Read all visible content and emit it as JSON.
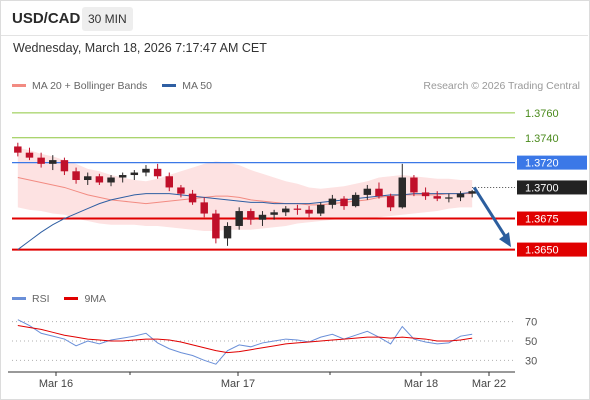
{
  "header": {
    "symbol": "USD/CAD",
    "timeframe": "30 MIN"
  },
  "timestamp": "Wednesday, March 18, 2026 7:17:47 AM CET",
  "legend": {
    "ma20_label": "MA 20 + Bollinger Bands",
    "ma50_label": "MA 50",
    "ma20_color": "#f28b82",
    "ma50_color": "#2f5fa3"
  },
  "credit": "Research © 2026 Trading Central",
  "rsi_legend": {
    "rsi_label": "RSI",
    "ma9_label": "9MA",
    "rsi_color": "#6a8fd8",
    "ma9_color": "#e00000"
  },
  "colors": {
    "up_candle": "#2a2a2a",
    "down_candle": "#c0102a",
    "resistance": "#8dc63f",
    "support": "#e00000",
    "pivot": "#3b78e7",
    "current": "#222222",
    "band_fill": "#fde2e2",
    "forecast_arrow": "#2c5e9e"
  },
  "chart_data": [
    {
      "type": "candlestick",
      "title": "USD/CAD 30 MIN",
      "ylim": [
        1.364,
        1.3772
      ],
      "x_ticks": [
        "Mar 16",
        "Mar 17",
        "Mar 18",
        "Mar 22"
      ],
      "series": [
        {
          "name": "MA 20 + Bollinger Bands",
          "values": [
            1.3708,
            1.3706,
            1.3704,
            1.3702,
            1.37,
            1.3697,
            1.3694,
            1.3692,
            1.369,
            1.3689,
            1.3688,
            1.3687,
            1.3688,
            1.3689,
            1.369,
            1.3691,
            1.3692,
            1.3693,
            1.3693,
            1.3692,
            1.369,
            1.3689,
            1.3688,
            1.3687,
            1.3687,
            1.3686,
            1.3686,
            1.3687,
            1.3688,
            1.3689,
            1.369,
            1.3692,
            1.3693,
            1.3694,
            1.3694,
            1.3694,
            1.3694,
            1.3695,
            1.3695,
            1.3695
          ]
        },
        {
          "name": "MA 50",
          "values": [
            1.365,
            1.3657,
            1.3664,
            1.367,
            1.3675,
            1.3679,
            1.3683,
            1.3687,
            1.369,
            1.3692,
            1.3694,
            1.3695,
            1.3695,
            1.3695,
            1.3694,
            1.3693,
            1.3692,
            1.3691,
            1.369,
            1.3689,
            1.3688,
            1.3688,
            1.3687,
            1.3687,
            1.3687,
            1.3687,
            1.3688,
            1.3689,
            1.369,
            1.3691,
            1.3692,
            1.3693,
            1.3694,
            1.3694,
            1.3695,
            1.3695,
            1.3695,
            1.3695,
            1.3695,
            1.3696
          ]
        }
      ],
      "candles": [
        [
          1.3733,
          1.3736,
          1.3725,
          1.3728
        ],
        [
          1.3728,
          1.3732,
          1.3722,
          1.3724
        ],
        [
          1.3724,
          1.3728,
          1.3716,
          1.3719
        ],
        [
          1.3719,
          1.3726,
          1.3714,
          1.3722
        ],
        [
          1.3722,
          1.3724,
          1.371,
          1.3713
        ],
        [
          1.3713,
          1.3716,
          1.3703,
          1.3706
        ],
        [
          1.3706,
          1.3712,
          1.3702,
          1.3709
        ],
        [
          1.3709,
          1.3711,
          1.3702,
          1.3704
        ],
        [
          1.3704,
          1.371,
          1.3701,
          1.3708
        ],
        [
          1.3708,
          1.3712,
          1.3704,
          1.371
        ],
        [
          1.371,
          1.3714,
          1.3706,
          1.3712
        ],
        [
          1.3712,
          1.3718,
          1.3709,
          1.3715
        ],
        [
          1.3715,
          1.3719,
          1.3707,
          1.3709
        ],
        [
          1.3709,
          1.3712,
          1.3697,
          1.37
        ],
        [
          1.37,
          1.3702,
          1.3692,
          1.3695
        ],
        [
          1.3695,
          1.3698,
          1.3686,
          1.3688
        ],
        [
          1.3688,
          1.3692,
          1.3676,
          1.3679
        ],
        [
          1.3679,
          1.3682,
          1.3655,
          1.3659
        ],
        [
          1.3659,
          1.3672,
          1.3653,
          1.3669
        ],
        [
          1.3669,
          1.3684,
          1.3666,
          1.3681
        ],
        [
          1.3681,
          1.3683,
          1.367,
          1.3674
        ],
        [
          1.3674,
          1.3681,
          1.3669,
          1.3678
        ],
        [
          1.3678,
          1.3682,
          1.3674,
          1.368
        ],
        [
          1.368,
          1.3685,
          1.3677,
          1.3683
        ],
        [
          1.3683,
          1.3686,
          1.3678,
          1.3682
        ],
        [
          1.3682,
          1.3685,
          1.3676,
          1.3679
        ],
        [
          1.3679,
          1.3688,
          1.3677,
          1.3686
        ],
        [
          1.3686,
          1.3694,
          1.3683,
          1.3691
        ],
        [
          1.3691,
          1.3693,
          1.3682,
          1.3685
        ],
        [
          1.3685,
          1.3696,
          1.3684,
          1.3694
        ],
        [
          1.3694,
          1.3702,
          1.369,
          1.3699
        ],
        [
          1.3699,
          1.3704,
          1.3691,
          1.3693
        ],
        [
          1.3693,
          1.3695,
          1.3681,
          1.3684
        ],
        [
          1.3684,
          1.3719,
          1.3683,
          1.3708
        ],
        [
          1.3708,
          1.371,
          1.3693,
          1.3696
        ],
        [
          1.3696,
          1.37,
          1.369,
          1.3693
        ],
        [
          1.3693,
          1.3697,
          1.3689,
          1.3691
        ],
        [
          1.3691,
          1.3695,
          1.3688,
          1.3692
        ],
        [
          1.3692,
          1.3697,
          1.3689,
          1.3695
        ],
        [
          1.3695,
          1.3698,
          1.3692,
          1.3697
        ]
      ],
      "levels": [
        {
          "label": "1.3760",
          "value": 1.376,
          "kind": "resistance"
        },
        {
          "label": "1.3740",
          "value": 1.374,
          "kind": "resistance"
        },
        {
          "label": "1.3720",
          "value": 1.372,
          "kind": "pivot"
        },
        {
          "label": "1.3700",
          "value": 1.37,
          "kind": "current"
        },
        {
          "label": "1.3675",
          "value": 1.3675,
          "kind": "support"
        },
        {
          "label": "1.3650",
          "value": 1.365,
          "kind": "support"
        }
      ],
      "forecast": {
        "from": 1.37,
        "to": 1.3652
      }
    },
    {
      "type": "line",
      "title": "RSI",
      "ylim": [
        20,
        80
      ],
      "y_ticks": [
        70,
        50,
        30
      ],
      "series": [
        {
          "name": "RSI",
          "values": [
            72,
            66,
            58,
            55,
            52,
            45,
            50,
            47,
            51,
            53,
            55,
            58,
            48,
            42,
            38,
            35,
            30,
            26,
            40,
            46,
            44,
            48,
            50,
            52,
            51,
            49,
            54,
            57,
            52,
            56,
            60,
            54,
            47,
            65,
            52,
            49,
            47,
            48,
            55,
            57
          ]
        },
        {
          "name": "9MA",
          "values": [
            66,
            64,
            62,
            59,
            56,
            54,
            52,
            51,
            50,
            50,
            51,
            52,
            52,
            51,
            49,
            46,
            43,
            40,
            38,
            39,
            41,
            43,
            45,
            47,
            48,
            49,
            50,
            51,
            52,
            53,
            54,
            54,
            53,
            54,
            53,
            52,
            50,
            50,
            51,
            53
          ]
        }
      ]
    }
  ]
}
